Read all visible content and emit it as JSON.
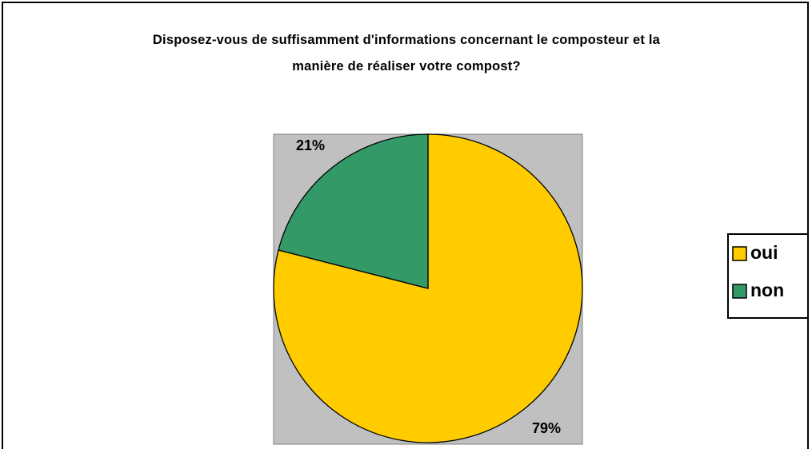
{
  "chart_data": {
    "type": "pie",
    "title": "Disposez-vous de suffisamment d'informations concernant le composteur et la manière de réaliser votre compost?",
    "categories": [
      "oui",
      "non"
    ],
    "values": [
      79,
      21
    ],
    "value_labels": [
      "79%",
      "21%"
    ],
    "colors": [
      "#FFCC00",
      "#339966"
    ],
    "legend": "right"
  }
}
